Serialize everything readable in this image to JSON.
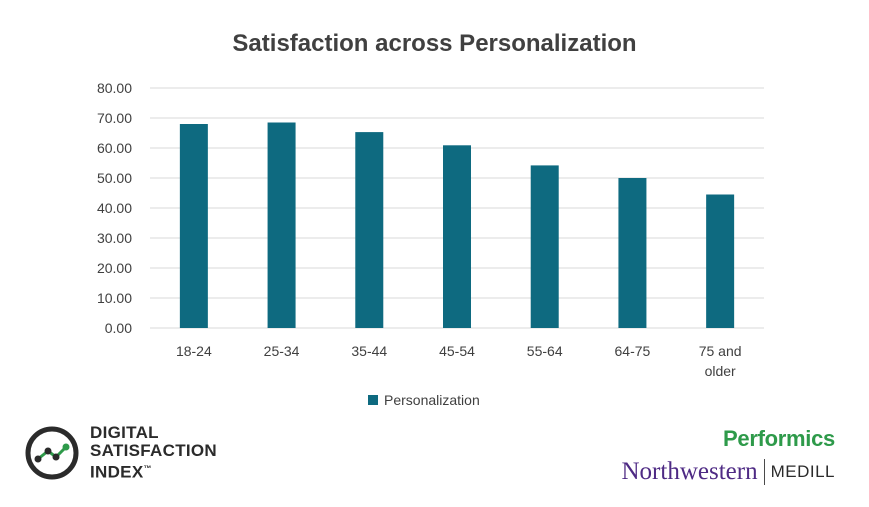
{
  "chart_data": {
    "type": "bar",
    "title": "Satisfaction across Personalization",
    "categories": [
      [
        "18-24"
      ],
      [
        "25-34"
      ],
      [
        "35-44"
      ],
      [
        "45-54"
      ],
      [
        "55-64"
      ],
      [
        "64-75"
      ],
      [
        "75 and",
        "older"
      ]
    ],
    "series": [
      {
        "name": "Personalization",
        "values": [
          68.0,
          68.5,
          65.3,
          60.9,
          54.2,
          50.0,
          44.5
        ],
        "color": "#0e6a80"
      }
    ],
    "yticks": [
      "0.00",
      "10.00",
      "20.00",
      "30.00",
      "40.00",
      "50.00",
      "60.00",
      "70.00",
      "80.00"
    ],
    "ylim": [
      0,
      80
    ],
    "grid": true,
    "legend_position": "bottom",
    "gridline_color": "#d9d9d9",
    "axis_text_color": "#404040"
  },
  "logos": {
    "dsi": {
      "line1": "DIGITAL",
      "line2": "SATISFACTION",
      "line3": "INDEX",
      "tm": "™",
      "icon": "dsi-chart-icon"
    },
    "performics": "Performics",
    "northwestern": "Northwestern",
    "medill": "MEDILL"
  }
}
